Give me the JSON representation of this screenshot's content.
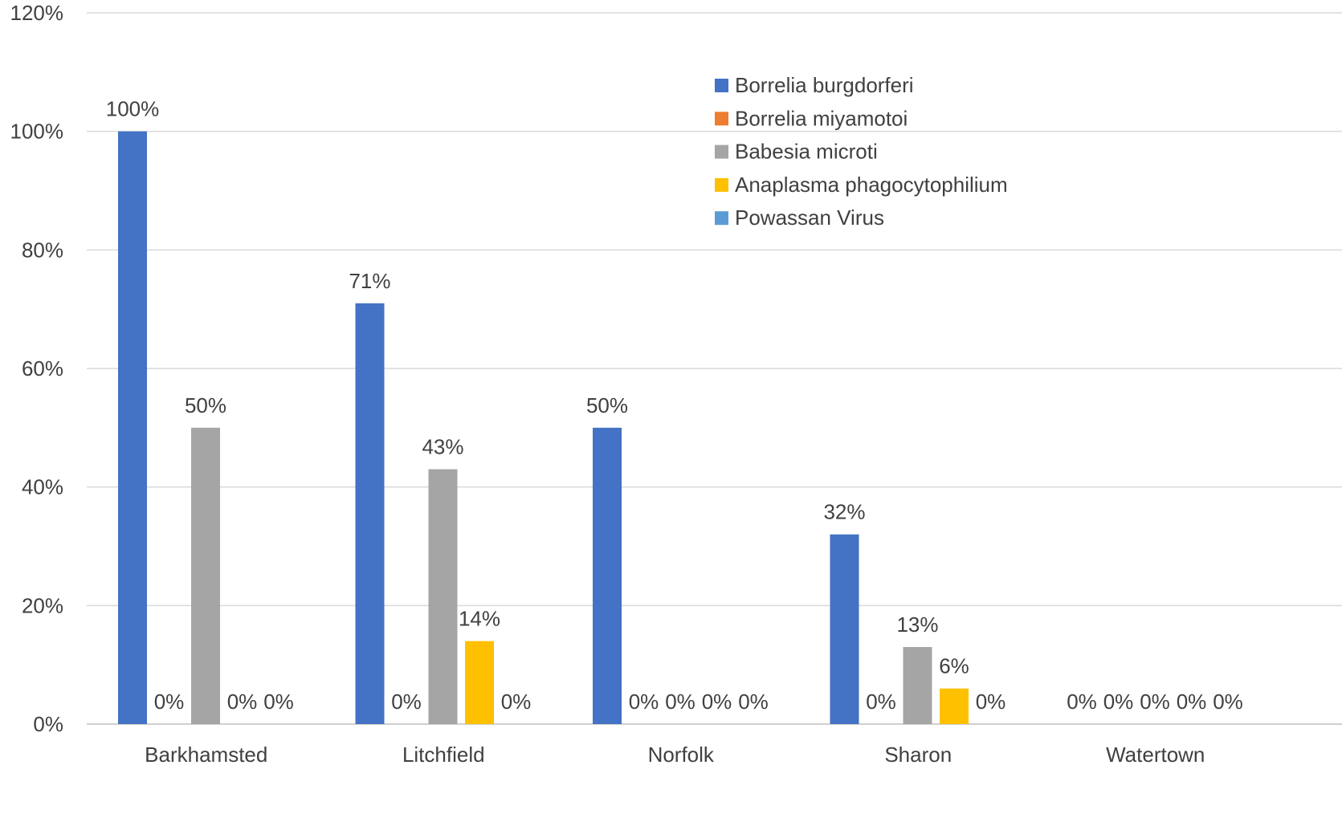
{
  "chart_data": {
    "type": "bar",
    "title": "",
    "xlabel": "",
    "ylabel": "",
    "categories": [
      "Barkhamsted",
      "Litchfield",
      "Norfolk",
      "Sharon",
      "Watertown"
    ],
    "series": [
      {
        "name": "Borrelia burgdorferi",
        "color": "#4472c4",
        "values": [
          100,
          71,
          50,
          32,
          0
        ]
      },
      {
        "name": "Borrelia miyamotoi",
        "color": "#ed7d31",
        "values": [
          0,
          0,
          0,
          0,
          0
        ]
      },
      {
        "name": "Babesia microti",
        "color": "#a5a5a5",
        "values": [
          50,
          43,
          0,
          13,
          0
        ]
      },
      {
        "name": "Anaplasma phagocytophilium",
        "color": "#ffc000",
        "values": [
          0,
          14,
          0,
          6,
          0
        ]
      },
      {
        "name": "Powassan Virus",
        "color": "#5b9bd5",
        "values": [
          0,
          0,
          0,
          0,
          0
        ]
      }
    ],
    "ylim": [
      0,
      120
    ],
    "yticks": [
      0,
      20,
      40,
      60,
      80,
      100,
      120
    ],
    "yticks_labels": [
      "0%",
      "20%",
      "40%",
      "60%",
      "80%",
      "100%",
      "120%"
    ],
    "value_suffix": "%",
    "grid": true,
    "legend_position": "top-right"
  }
}
